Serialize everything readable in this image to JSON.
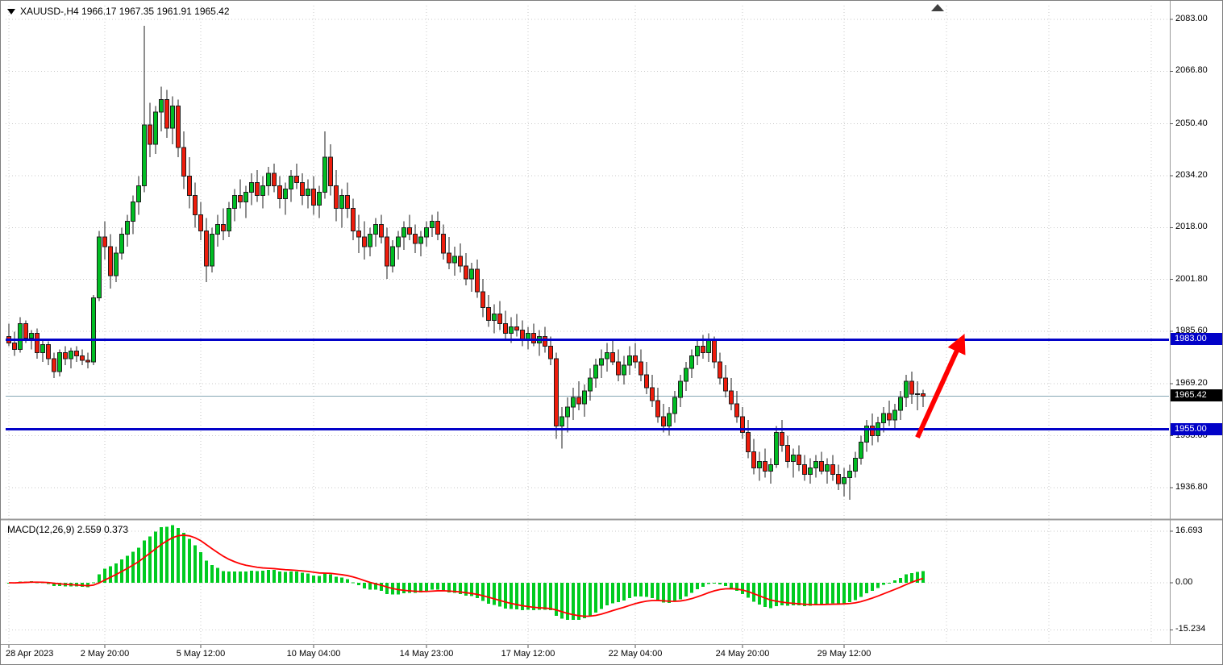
{
  "title": {
    "text": "XAUUSD-,H4  1966.17 1967.35 1961.91 1965.42"
  },
  "colors": {
    "up": "#00BD23",
    "down": "#EE1C0C",
    "candle_outline": "#1e1e1e",
    "grid": "#c9c9c9",
    "hline": "#0202C8",
    "hist": "#00CB20",
    "signal": "#FF0000",
    "arrow": "#FF0000",
    "price_line": "#86a7b4",
    "tag_text": "#ffffff",
    "current_tag_bg": "#000000",
    "separator": "#9b9b9b",
    "shift_marker": "#404040",
    "axis_text": "#000000"
  },
  "chart_data": {
    "type": "candlestick",
    "symbol": "XAUUSD-",
    "timeframe": "H4",
    "last_ohlc": {
      "open": "1966.17",
      "high": "1967.35",
      "low": "1961.91",
      "close": "1965.42"
    },
    "price_axis_ticks": [
      "2083.00",
      "2066.80",
      "2050.40",
      "2034.20",
      "2018.00",
      "2001.80",
      "1985.60",
      "1969.20",
      "1953.00",
      "1936.80"
    ],
    "time_axis_ticks": [
      {
        "text": "28 Apr 2023",
        "index": 0,
        "align": "left"
      },
      {
        "text": "2 May 20:00",
        "index": 17
      },
      {
        "text": "5 May 12:00",
        "index": 34
      },
      {
        "text": "10 May 04:00",
        "index": 54
      },
      {
        "text": "14 May 23:00",
        "index": 74
      },
      {
        "text": "17 May 12:00",
        "index": 92
      },
      {
        "text": "22 May 04:00",
        "index": 111
      },
      {
        "text": "24 May 20:00",
        "index": 130
      },
      {
        "text": "29 May 12:00",
        "index": 148
      }
    ],
    "horizontal_lines": [
      {
        "price": 1983.0,
        "label": "1983.00"
      },
      {
        "price": 1955.0,
        "label": "1955.00"
      }
    ],
    "current_price": {
      "value": 1965.42,
      "label": "1965.42"
    },
    "trend_arrow": {
      "from": {
        "index": 161,
        "price": 1952.5
      },
      "to": {
        "index": 169,
        "price": 1983.5
      }
    },
    "indicator": {
      "name": "MACD",
      "fast": 12,
      "slow": 26,
      "signal": 9,
      "value": "2.559",
      "signal_value": "0.373",
      "label": "MACD(12,26,9) 2.559 0.373",
      "axis_ticks": [
        {
          "text": "16.693",
          "value": 16.693
        },
        {
          "text": "0.00",
          "value": 0
        },
        {
          "text": "-15.234",
          "value": -15.234
        }
      ]
    },
    "candles": [
      [
        1984,
        1988,
        1981,
        1982
      ],
      [
        1982,
        1985.5,
        1978,
        1980
      ],
      [
        1980,
        1990,
        1979,
        1988
      ],
      [
        1988,
        1989,
        1982,
        1983.5
      ],
      [
        1983.5,
        1986,
        1980,
        1985
      ],
      [
        1985,
        1986.5,
        1977,
        1979
      ],
      [
        1979,
        1983,
        1976,
        1981.5
      ],
      [
        1981.5,
        1982.5,
        1975,
        1977
      ],
      [
        1977,
        1979,
        1971,
        1973
      ],
      [
        1973,
        1980,
        1971.5,
        1979
      ],
      [
        1979,
        1981,
        1975,
        1977
      ],
      [
        1977,
        1980.5,
        1974,
        1979.5
      ],
      [
        1979.5,
        1981,
        1976,
        1978
      ],
      [
        1978,
        1980,
        1975,
        1976.5
      ],
      [
        1976.5,
        1979,
        1974,
        1976
      ],
      [
        1976,
        1997,
        1975,
        1996
      ],
      [
        1996,
        2017,
        1995,
        2015
      ],
      [
        2015,
        2020,
        2008,
        2012
      ],
      [
        2012,
        2016,
        1999,
        2003
      ],
      [
        2003,
        2012,
        2001,
        2010
      ],
      [
        2010,
        2018,
        2008,
        2016
      ],
      [
        2016,
        2022,
        2012,
        2020
      ],
      [
        2020,
        2028,
        2016,
        2026
      ],
      [
        2026,
        2034,
        2022,
        2031
      ],
      [
        2031,
        2081,
        2029,
        2050
      ],
      [
        2050,
        2057,
        2040,
        2044
      ],
      [
        2044,
        2056,
        2041,
        2054
      ],
      [
        2054,
        2062,
        2048,
        2058
      ],
      [
        2058,
        2061,
        2046,
        2049
      ],
      [
        2049,
        2059,
        2044,
        2056
      ],
      [
        2056,
        2058,
        2040,
        2043
      ],
      [
        2043,
        2048,
        2030,
        2034
      ],
      [
        2034,
        2040,
        2024,
        2028
      ],
      [
        2028,
        2032,
        2018,
        2022
      ],
      [
        2022,
        2026,
        2014,
        2017
      ],
      [
        2017,
        2021,
        2001,
        2006
      ],
      [
        2006,
        2018,
        2004,
        2016
      ],
      [
        2016,
        2022,
        2012,
        2019
      ],
      [
        2019,
        2024,
        2014,
        2017
      ],
      [
        2017,
        2026,
        2015,
        2024
      ],
      [
        2024,
        2030,
        2020,
        2028
      ],
      [
        2028,
        2033,
        2024,
        2026
      ],
      [
        2026,
        2031,
        2021,
        2029
      ],
      [
        2029,
        2035,
        2025,
        2032
      ],
      [
        2032,
        2036,
        2026,
        2028
      ],
      [
        2028,
        2034,
        2024,
        2031
      ],
      [
        2031,
        2037,
        2028,
        2035
      ],
      [
        2035,
        2038,
        2029,
        2031
      ],
      [
        2031,
        2034,
        2024,
        2027
      ],
      [
        2027,
        2032,
        2022,
        2030
      ],
      [
        2030,
        2036,
        2026,
        2034
      ],
      [
        2034,
        2038,
        2030,
        2032
      ],
      [
        2032,
        2035,
        2025,
        2028
      ],
      [
        2028,
        2033,
        2024,
        2030
      ],
      [
        2030,
        2034,
        2022,
        2025
      ],
      [
        2025,
        2031,
        2021,
        2029
      ],
      [
        2029,
        2048,
        2027,
        2040
      ],
      [
        2040,
        2044,
        2028,
        2031
      ],
      [
        2031,
        2036,
        2020,
        2024
      ],
      [
        2024,
        2030,
        2018,
        2028
      ],
      [
        2028,
        2032,
        2021,
        2024
      ],
      [
        2024,
        2027,
        2014,
        2017
      ],
      [
        2017,
        2022,
        2010,
        2015
      ],
      [
        2015,
        2020,
        2008,
        2012
      ],
      [
        2012,
        2018,
        2009,
        2016
      ],
      [
        2016,
        2021,
        2012,
        2019
      ],
      [
        2019,
        2022,
        2013,
        2015
      ],
      [
        2015,
        2018,
        2002,
        2006
      ],
      [
        2006,
        2014,
        2004,
        2012
      ],
      [
        2012,
        2017,
        2008,
        2015
      ],
      [
        2015,
        2020,
        2011,
        2018
      ],
      [
        2018,
        2022,
        2014,
        2016
      ],
      [
        2016,
        2019,
        2010,
        2013
      ],
      [
        2013,
        2017,
        2009,
        2015
      ],
      [
        2015,
        2020,
        2012,
        2018
      ],
      [
        2018,
        2022,
        2015,
        2020
      ],
      [
        2020,
        2023,
        2014,
        2016
      ],
      [
        2016,
        2019,
        2008,
        2010
      ],
      [
        2010,
        2015,
        2005,
        2007
      ],
      [
        2007,
        2012,
        2003,
        2009
      ],
      [
        2009,
        2013,
        2004,
        2006
      ],
      [
        2006,
        2010,
        2000,
        2002
      ],
      [
        2002,
        2007,
        1998,
        2005
      ],
      [
        2005,
        2008,
        1996,
        1998
      ],
      [
        1998,
        2002,
        1990,
        1993
      ],
      [
        1993,
        1997,
        1987,
        1989
      ],
      [
        1989,
        1994,
        1985,
        1991
      ],
      [
        1991,
        1995,
        1986,
        1988
      ],
      [
        1988,
        1992,
        1983,
        1985
      ],
      [
        1985,
        1990,
        1982,
        1987
      ],
      [
        1987,
        1991,
        1984,
        1986
      ],
      [
        1986,
        1989,
        1981,
        1983
      ],
      [
        1983,
        1987,
        1980,
        1985
      ],
      [
        1985,
        1988,
        1981,
        1982
      ],
      [
        1982,
        1986,
        1978,
        1984
      ],
      [
        1984,
        1987,
        1979,
        1981
      ],
      [
        1981,
        1984,
        1975,
        1977
      ],
      [
        1977,
        1979,
        1952,
        1956
      ],
      [
        1956,
        1962,
        1949,
        1959
      ],
      [
        1959,
        1965,
        1954,
        1962
      ],
      [
        1962,
        1968,
        1958,
        1965
      ],
      [
        1965,
        1970,
        1961,
        1963
      ],
      [
        1963,
        1969,
        1959,
        1967
      ],
      [
        1967,
        1974,
        1964,
        1971
      ],
      [
        1971,
        1977,
        1968,
        1975
      ],
      [
        1975,
        1980,
        1971,
        1977
      ],
      [
        1977,
        1982,
        1973,
        1979
      ],
      [
        1979,
        1983,
        1975,
        1976
      ],
      [
        1976,
        1980,
        1970,
        1972
      ],
      [
        1972,
        1978,
        1969,
        1975
      ],
      [
        1975,
        1981,
        1972,
        1978
      ],
      [
        1978,
        1982,
        1974,
        1976
      ],
      [
        1976,
        1980,
        1970,
        1972
      ],
      [
        1972,
        1976,
        1966,
        1968
      ],
      [
        1968,
        1972,
        1962,
        1964
      ],
      [
        1964,
        1968,
        1957,
        1959
      ],
      [
        1959,
        1963,
        1954,
        1956
      ],
      [
        1956,
        1962,
        1953,
        1960
      ],
      [
        1960,
        1967,
        1957,
        1965
      ],
      [
        1965,
        1972,
        1962,
        1970
      ],
      [
        1970,
        1976,
        1967,
        1974
      ],
      [
        1974,
        1980,
        1971,
        1978
      ],
      [
        1978,
        1983,
        1975,
        1981
      ],
      [
        1981,
        1984.5,
        1977,
        1979
      ],
      [
        1979,
        1985,
        1976,
        1983
      ],
      [
        1983,
        1984,
        1974,
        1976
      ],
      [
        1976,
        1979,
        1969,
        1971
      ],
      [
        1971,
        1975,
        1965,
        1967
      ],
      [
        1967,
        1971,
        1961,
        1963
      ],
      [
        1963,
        1967,
        1957,
        1959
      ],
      [
        1959,
        1962,
        1952,
        1954
      ],
      [
        1954,
        1958,
        1946,
        1948
      ],
      [
        1948,
        1952,
        1941,
        1943
      ],
      [
        1943,
        1948,
        1939,
        1945
      ],
      [
        1945,
        1949,
        1940,
        1942
      ],
      [
        1942,
        1946,
        1938,
        1944
      ],
      [
        1944,
        1956,
        1943,
        1954
      ],
      [
        1954,
        1958,
        1948,
        1950
      ],
      [
        1950,
        1953,
        1943,
        1945
      ],
      [
        1945,
        1949,
        1940,
        1947
      ],
      [
        1947,
        1950,
        1942,
        1944
      ],
      [
        1944,
        1947,
        1939,
        1941
      ],
      [
        1941,
        1946,
        1938,
        1943
      ],
      [
        1943,
        1947,
        1940,
        1945
      ],
      [
        1945,
        1948,
        1941,
        1942
      ],
      [
        1942,
        1946,
        1938,
        1944
      ],
      [
        1944,
        1947,
        1939,
        1941
      ],
      [
        1941,
        1944,
        1936,
        1938
      ],
      [
        1938,
        1943,
        1934,
        1940
      ],
      [
        1940,
        1944,
        1933,
        1942
      ],
      [
        1942,
        1948,
        1940,
        1946
      ],
      [
        1946,
        1953,
        1944,
        1951
      ],
      [
        1951,
        1958,
        1948,
        1956
      ],
      [
        1956,
        1960,
        1950,
        1953
      ],
      [
        1953,
        1959,
        1951,
        1957
      ],
      [
        1957,
        1962,
        1954,
        1960
      ],
      [
        1960,
        1964,
        1956,
        1958
      ],
      [
        1958,
        1963,
        1955,
        1961
      ],
      [
        1961,
        1967,
        1958,
        1965
      ],
      [
        1965,
        1972,
        1962,
        1970
      ],
      [
        1970,
        1973,
        1963,
        1966
      ],
      [
        1966,
        1970,
        1961,
        1966.17
      ],
      [
        1966.17,
        1967.35,
        1961.91,
        1965.42
      ]
    ]
  }
}
